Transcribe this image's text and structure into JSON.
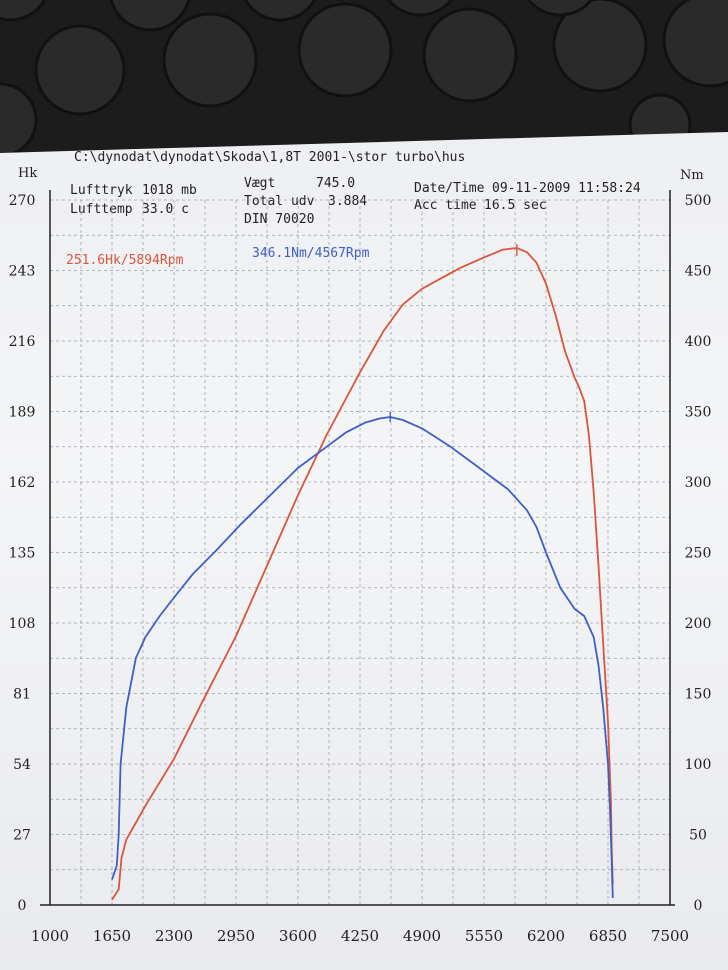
{
  "header": {
    "path": "C:\\dynodat\\dynodat\\Skoda\\1,8T 2001-\\stor turbo\\hus",
    "lufttryk_label": "Lufttryk",
    "lufttryk_value": "1018 mb",
    "lufttemp_label": "Lufttemp",
    "lufttemp_value": "33.0 c",
    "vaegt_label": "Vægt",
    "vaegt_value": "745.0",
    "total_udv_label": "Total udv",
    "total_udv_value": "3.884",
    "din": "DIN 70020",
    "datetime_label": "Date/Time",
    "datetime_value": "09-11-2009 11:58:24",
    "acc_time_label": "Acc time",
    "acc_time_value": "16.5 sec"
  },
  "colors": {
    "power": "#d9563c",
    "torque": "#3f5fc4",
    "grid": "#9ea3ad",
    "axis": "#222222"
  },
  "chart_data": {
    "type": "line",
    "x_ticks": [
      "1000",
      "1650",
      "2300",
      "2950",
      "3600",
      "4250",
      "4900",
      "5550",
      "6200",
      "6850",
      "7500"
    ],
    "xlim": [
      1000,
      7500
    ],
    "left_axis": {
      "unit": "Hk",
      "ticks": [
        "0",
        "27",
        "54",
        "81",
        "108",
        "135",
        "162",
        "189",
        "216",
        "243",
        "270"
      ],
      "ylim": [
        0,
        270
      ]
    },
    "right_axis": {
      "unit": "Nm",
      "ticks": [
        "0",
        "50",
        "100",
        "150",
        "200",
        "250",
        "300",
        "350",
        "400",
        "450",
        "500"
      ],
      "ylim": [
        0,
        500
      ]
    },
    "peak_labels": {
      "power": "251.6Hk/5894Rpm",
      "torque": "346.1Nm/4567Rpm"
    },
    "series": [
      {
        "key": "power",
        "axis": "left",
        "x": [
          1650,
          1720,
          1750,
          1800,
          2000,
          2300,
          2600,
          2950,
          3300,
          3600,
          3900,
          4250,
          4500,
          4700,
          4900,
          5100,
          5300,
          5550,
          5750,
          5894,
          6000,
          6100,
          6200,
          6300,
          6400,
          6500,
          6550,
          6600,
          6650,
          6700,
          6750,
          6800,
          6850,
          6880,
          6890,
          6900
        ],
        "values": [
          2,
          6,
          18,
          25,
          38,
          56,
          78,
          103,
          132,
          157,
          180,
          204,
          220,
          230,
          236,
          240,
          244,
          248,
          251,
          251.6,
          250,
          246,
          238,
          226,
          212,
          202,
          198,
          193,
          180,
          158,
          130,
          100,
          70,
          40,
          20,
          8
        ]
      },
      {
        "key": "torque",
        "axis": "right",
        "x": [
          1650,
          1700,
          1720,
          1740,
          1800,
          1900,
          2000,
          2150,
          2300,
          2500,
          2750,
          3000,
          3300,
          3600,
          3900,
          4100,
          4300,
          4450,
          4567,
          4700,
          4900,
          5200,
          5500,
          5800,
          6000,
          6100,
          6200,
          6350,
          6500,
          6600,
          6700,
          6750,
          6800,
          6850,
          6870,
          6885,
          6900
        ],
        "values": [
          18,
          28,
          50,
          100,
          140,
          175,
          190,
          205,
          218,
          235,
          252,
          270,
          290,
          310,
          325,
          335,
          342,
          345,
          346.1,
          344,
          338,
          325,
          310,
          295,
          280,
          268,
          250,
          225,
          210,
          205,
          190,
          170,
          140,
          100,
          70,
          40,
          5
        ]
      }
    ]
  }
}
